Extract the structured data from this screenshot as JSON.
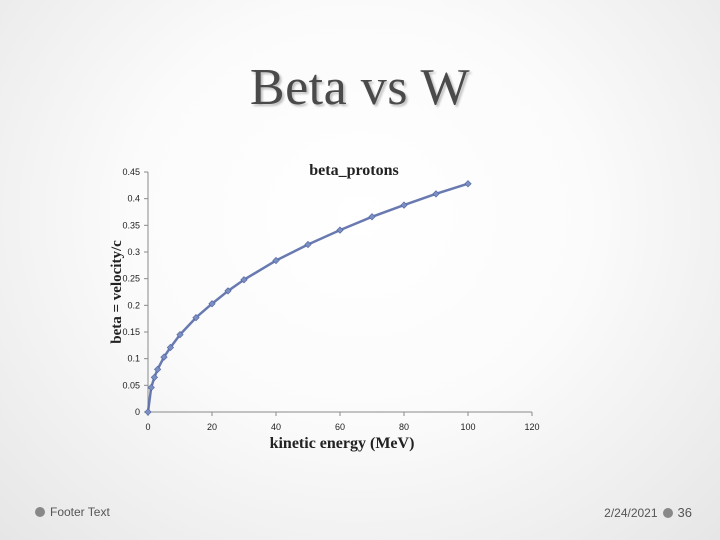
{
  "slide": {
    "title": "Beta vs W"
  },
  "footer": {
    "text": "Footer Text",
    "date": "2/24/2021",
    "page": "36"
  },
  "colors": {
    "series": "#7b8fc0",
    "series_stroke": "#4f63a3",
    "axis": "#8a8a8a",
    "text": "#222222"
  },
  "chart_data": {
    "type": "scatter",
    "title": "beta_protons",
    "xlabel": "kinetic energy (MeV)",
    "ylabel": "beta = velocity/c",
    "xlim": [
      0,
      120
    ],
    "ylim": [
      0,
      0.45
    ],
    "x_ticks": [
      0,
      20,
      40,
      60,
      80,
      100,
      120
    ],
    "y_ticks": [
      0,
      0.05,
      0.1,
      0.15,
      0.2,
      0.25,
      0.3,
      0.35,
      0.4,
      0.45
    ],
    "x_tick_labels": [
      "0",
      "20",
      "40",
      "60",
      "80",
      "100",
      "120"
    ],
    "y_tick_labels": [
      "0",
      "0.05",
      "0.1",
      "0.15",
      "0.2",
      "0.25",
      "0.3",
      "0.35",
      "0.4",
      "0.45"
    ],
    "series": [
      {
        "x": [
          0,
          1,
          2,
          3,
          5,
          7,
          10,
          15,
          20,
          25,
          30,
          40,
          50,
          60,
          70,
          80,
          90,
          100
        ],
        "y": [
          0,
          0.046,
          0.065,
          0.08,
          0.103,
          0.121,
          0.145,
          0.177,
          0.203,
          0.227,
          0.248,
          0.284,
          0.314,
          0.341,
          0.366,
          0.388,
          0.409,
          0.428
        ]
      }
    ]
  }
}
